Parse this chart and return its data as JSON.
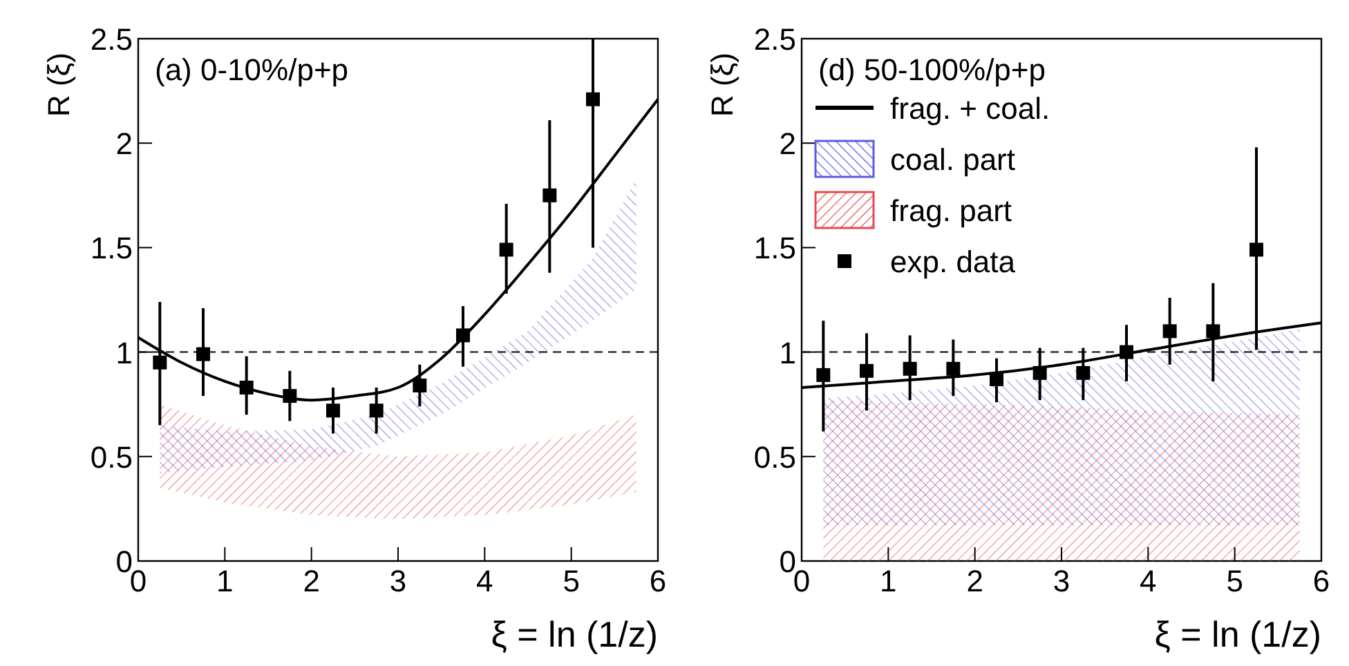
{
  "chart_data": [
    {
      "type": "line",
      "title": "(a) 0-10%/p+p",
      "xlabel": "ξ = ln (1/z)",
      "ylabel": "R (ξ)",
      "xlim": [
        0,
        6
      ],
      "xticks": [
        0,
        1,
        2,
        3,
        4,
        5,
        6
      ],
      "ylim": [
        0,
        2.5
      ],
      "yticks": [
        0,
        0.5,
        1,
        1.5,
        2,
        2.5
      ],
      "legend": false,
      "ref_lines": [
        {
          "axis": "y",
          "value": 1,
          "line_style": "dashed"
        }
      ],
      "series": [
        {
          "color": "#000000",
          "line_style": "solid",
          "x": [
            0,
            0.5,
            1,
            1.5,
            2,
            2.5,
            3,
            3.5,
            4,
            4.5,
            5,
            5.5,
            6
          ],
          "values": [
            1.07,
            0.95,
            0.86,
            0.8,
            0.77,
            0.79,
            0.83,
            0.97,
            1.18,
            1.42,
            1.67,
            1.94,
            2.21
          ]
        },
        {
          "type": "area",
          "color": "#5a5ae6",
          "x": [
            0.25,
            1,
            2,
            2.75,
            3.5,
            4.5,
            5.25,
            5.75
          ],
          "values": [
            null,
            null,
            null,
            null,
            null,
            null,
            null,
            null
          ],
          "upper": [
            0.65,
            0.62,
            0.63,
            0.7,
            0.85,
            1.1,
            1.45,
            1.83
          ],
          "lower": [
            0.42,
            0.45,
            0.48,
            0.55,
            0.7,
            0.95,
            1.15,
            1.3
          ]
        },
        {
          "type": "area",
          "color": "#e8484f",
          "x": [
            0.25,
            1,
            2,
            3,
            4,
            5,
            5.75
          ],
          "values": [
            null,
            null,
            null,
            null,
            null,
            null,
            null
          ],
          "upper": [
            0.75,
            0.65,
            0.55,
            0.5,
            0.52,
            0.6,
            0.7
          ],
          "lower": [
            0.35,
            0.28,
            0.22,
            0.2,
            0.22,
            0.27,
            0.33
          ]
        },
        {
          "type": "scatter",
          "color": "#000000",
          "marker": "square",
          "x": [
            0.25,
            0.75,
            1.25,
            1.75,
            2.25,
            2.75,
            3.25,
            3.75,
            4.25,
            4.75,
            5.25
          ],
          "values": [
            0.95,
            0.99,
            0.83,
            0.79,
            0.72,
            0.72,
            0.84,
            1.08,
            1.49,
            1.75,
            2.21
          ],
          "errors": [
            [
              0.65,
              1.24
            ],
            [
              0.79,
              1.21
            ],
            [
              0.7,
              0.98
            ],
            [
              0.67,
              0.91
            ],
            [
              0.61,
              0.83
            ],
            [
              0.61,
              0.83
            ],
            [
              0.74,
              0.94
            ],
            [
              0.93,
              1.22
            ],
            [
              1.28,
              1.71
            ],
            [
              1.38,
              2.11
            ],
            [
              1.5,
              2.5
            ]
          ]
        }
      ]
    },
    {
      "type": "line",
      "title": "(d) 50-100%/p+p",
      "xlabel": "ξ = ln (1/z)",
      "ylabel": "R (ξ)",
      "xlim": [
        0,
        6
      ],
      "xticks": [
        0,
        1,
        2,
        3,
        4,
        5,
        6
      ],
      "ylim": [
        0,
        2.5
      ],
      "yticks": [
        0,
        0.5,
        1,
        1.5,
        2,
        2.5
      ],
      "legend": "top left",
      "ref_lines": [
        {
          "axis": "y",
          "value": 1,
          "line_style": "dashed"
        }
      ],
      "series": [
        {
          "name": "frag. + coal.",
          "color": "#000000",
          "line_style": "solid",
          "x": [
            0,
            1,
            2,
            3,
            4,
            5,
            6
          ],
          "values": [
            0.83,
            0.86,
            0.89,
            0.94,
            1.01,
            1.08,
            1.14
          ]
        },
        {
          "type": "area",
          "name": "coal. part",
          "color": "#5a5ae6",
          "x": [
            0.25,
            1,
            2,
            3,
            4,
            5,
            5.75
          ],
          "values": [
            null,
            null,
            null,
            null,
            null,
            null,
            null
          ],
          "upper": [
            0.78,
            0.8,
            0.84,
            0.9,
            0.98,
            1.05,
            1.11
          ],
          "lower": [
            0.17,
            0.17,
            0.17,
            0.17,
            0.17,
            0.17,
            0.17
          ]
        },
        {
          "type": "area",
          "name": "frag. part",
          "color": "#e8484f",
          "x": [
            0.25,
            1,
            2,
            3,
            4,
            5,
            5.75
          ],
          "values": [
            null,
            null,
            null,
            null,
            null,
            null,
            null
          ],
          "upper": [
            0.77,
            0.76,
            0.75,
            0.74,
            0.72,
            0.71,
            0.7
          ],
          "lower": [
            0,
            0,
            0,
            0,
            0,
            0,
            0
          ]
        },
        {
          "type": "scatter",
          "name": "exp. data",
          "color": "#000000",
          "marker": "square",
          "x": [
            0.25,
            0.75,
            1.25,
            1.75,
            2.25,
            2.75,
            3.25,
            3.75,
            4.25,
            4.75,
            5.25
          ],
          "values": [
            0.89,
            0.91,
            0.92,
            0.92,
            0.87,
            0.9,
            0.9,
            1.0,
            1.1,
            1.1,
            1.49
          ],
          "errors": [
            [
              0.62,
              1.15
            ],
            [
              0.72,
              1.09
            ],
            [
              0.77,
              1.08
            ],
            [
              0.79,
              1.06
            ],
            [
              0.76,
              0.97
            ],
            [
              0.77,
              1.02
            ],
            [
              0.77,
              1.02
            ],
            [
              0.86,
              1.13
            ],
            [
              0.94,
              1.26
            ],
            [
              0.86,
              1.33
            ],
            [
              1.01,
              1.98
            ]
          ]
        }
      ]
    }
  ]
}
